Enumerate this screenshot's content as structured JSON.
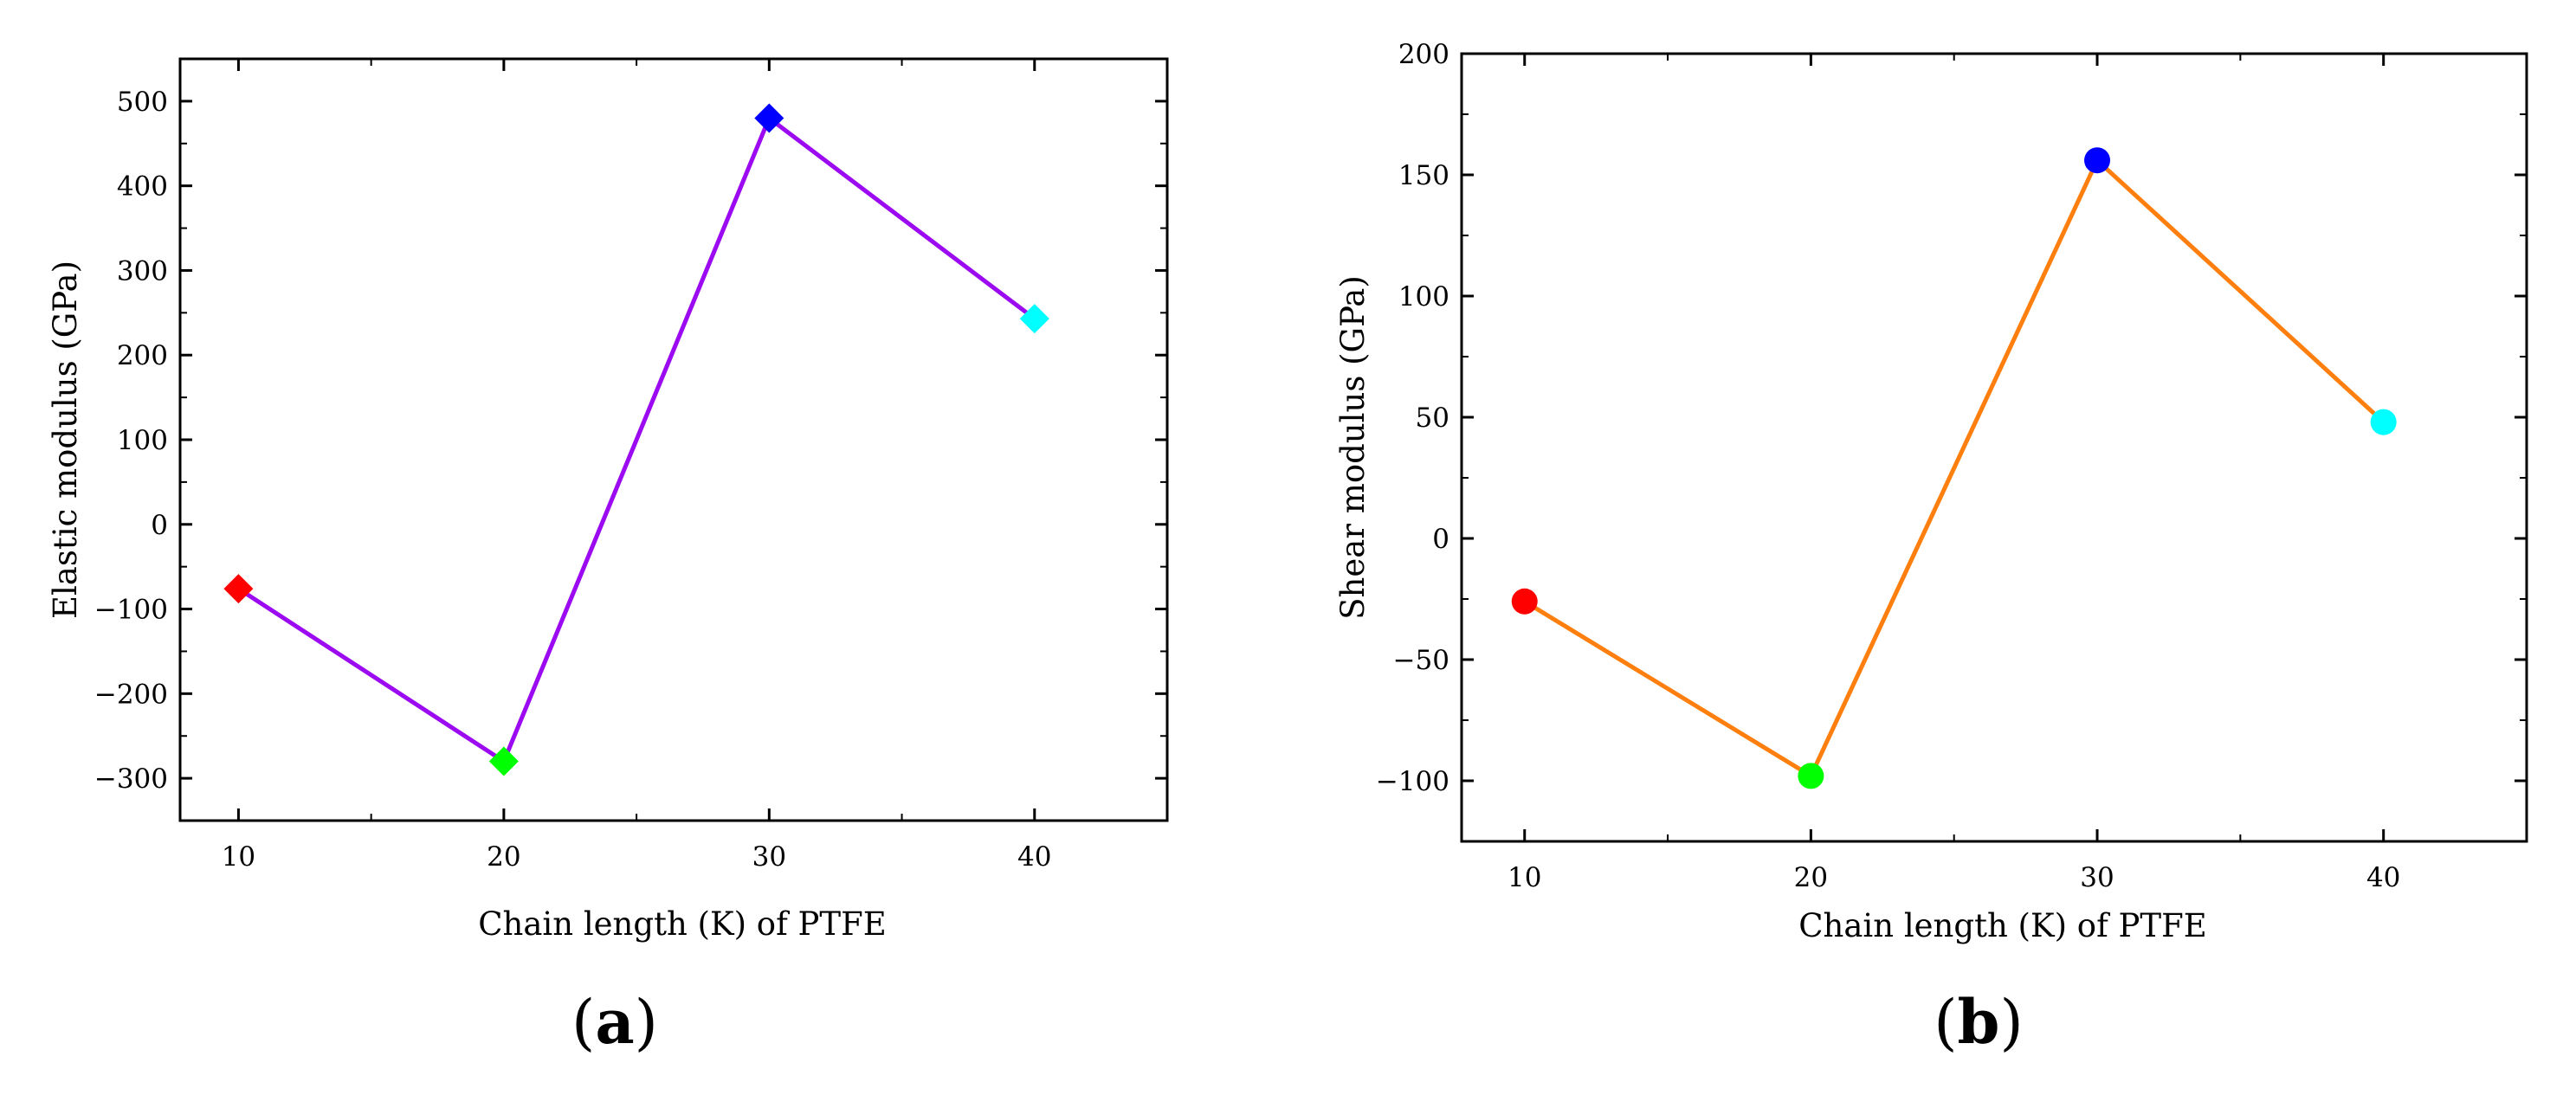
{
  "chart_data": [
    {
      "type": "line",
      "panel_label": "a",
      "marker": "diamond",
      "line_color": "#9B0AF0",
      "x": [
        10,
        20,
        30,
        40
      ],
      "y": [
        -76,
        -280,
        480,
        243
      ],
      "point_colors": [
        "#FF0000",
        "#00FF00",
        "#0000FF",
        "#00FFFF"
      ],
      "xlabel": "Chain length (K) of PTFE",
      "ylabel": "Elastic modulus (GPa)",
      "xlim": [
        7.8,
        45
      ],
      "ylim": [
        -350,
        550
      ],
      "xticks": [
        10,
        20,
        30,
        40
      ],
      "xticks_minor": [
        15,
        25,
        35,
        45
      ],
      "yticks": [
        -300,
        -200,
        -100,
        0,
        100,
        200,
        300,
        400,
        500
      ],
      "yticks_minor": [
        -250,
        -150,
        -50,
        50,
        150,
        250,
        350,
        450
      ],
      "xtick_labels": [
        "10",
        "20",
        "30",
        "40"
      ],
      "ytick_labels": [
        "−300",
        "−200",
        "−100",
        "0",
        "100",
        "200",
        "300",
        "400",
        "500"
      ],
      "grid": false
    },
    {
      "type": "line",
      "panel_label": "b",
      "marker": "circle",
      "line_color": "#FF7F0E",
      "x": [
        10,
        20,
        30,
        40
      ],
      "y": [
        -26,
        -98,
        156,
        48
      ],
      "point_colors": [
        "#FF0000",
        "#00FF00",
        "#0000FF",
        "#00FFFF"
      ],
      "xlabel": "Chain length (K) of PTFE",
      "ylabel": "Shear modulus (GPa)",
      "xlim": [
        7.8,
        45
      ],
      "ylim": [
        -125,
        200
      ],
      "xticks": [
        10,
        20,
        30,
        40
      ],
      "xticks_minor": [
        15,
        25,
        35,
        45
      ],
      "yticks": [
        -100,
        -50,
        0,
        50,
        100,
        150,
        200
      ],
      "yticks_minor": [
        -125,
        -75,
        -25,
        25,
        75,
        125,
        175
      ],
      "xtick_labels": [
        "10",
        "20",
        "30",
        "40"
      ],
      "ytick_labels": [
        "−100",
        "−50",
        "0",
        "50",
        "100",
        "150",
        "200"
      ],
      "grid": false
    }
  ]
}
